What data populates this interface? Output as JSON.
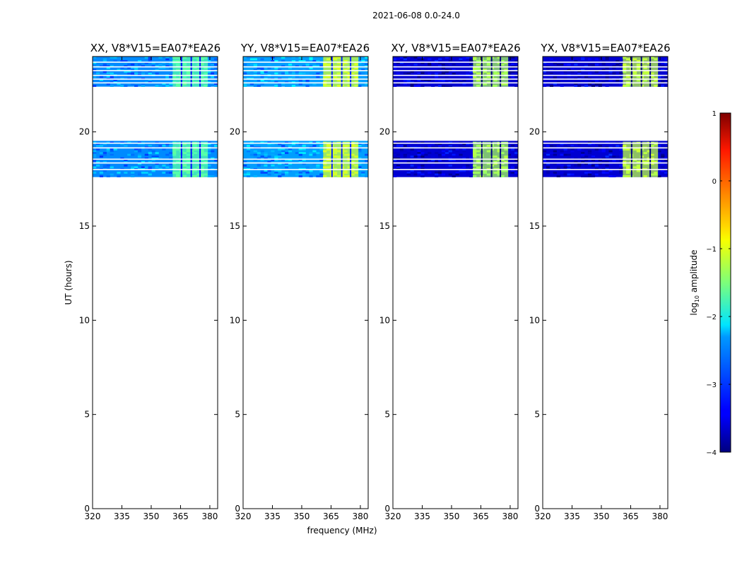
{
  "figure": {
    "suptitle": "2021-06-08 0.0-24.0",
    "ylabel": "UT (hours)",
    "xlabel": "frequency (MHz)"
  },
  "chart_data": {
    "type": "heatmap",
    "x_range_mhz": [
      320,
      384
    ],
    "y_range_hours": [
      0,
      24
    ],
    "xticks": [
      320,
      335,
      350,
      365,
      380
    ],
    "yticks": [
      0,
      5,
      10,
      15,
      20
    ],
    "panels": [
      {
        "title": "XX, V8*V15=EA07*EA26",
        "pol": "XX",
        "base_log10": -2.7,
        "band_log10": -1.7
      },
      {
        "title": "YY, V8*V15=EA07*EA26",
        "pol": "YY",
        "base_log10": -2.6,
        "band_log10": -1.1
      },
      {
        "title": "XY, V8*V15=EA07*EA26",
        "pol": "XY",
        "base_log10": -3.6,
        "band_log10": -1.3
      },
      {
        "title": "YX, V8*V15=EA07*EA26",
        "pol": "YX",
        "base_log10": -3.6,
        "band_log10": -1.2
      }
    ],
    "data_blocks_hours": [
      [
        22.4,
        24.0
      ],
      [
        17.6,
        19.5
      ]
    ],
    "flagged_rows_hours": [
      18.0,
      18.35,
      18.55,
      19.15,
      19.4,
      22.6,
      22.8,
      23.0,
      23.25,
      23.45,
      23.7
    ],
    "bright_band_mhz": [
      361,
      379
    ],
    "band_gaps_mhz": [
      365.5,
      370.5,
      375
    ],
    "colorbar": {
      "label": "log10 amplitude",
      "label_main": "log",
      "label_sub": "10",
      "label_tail": " amplitude",
      "range": [
        -4,
        1
      ],
      "ticks": [
        1,
        0,
        -1,
        -2,
        -3,
        -4
      ],
      "tick_labels": [
        "1",
        "0",
        "−1",
        "−2",
        "−3",
        "−4"
      ],
      "colormap": "jet"
    }
  }
}
